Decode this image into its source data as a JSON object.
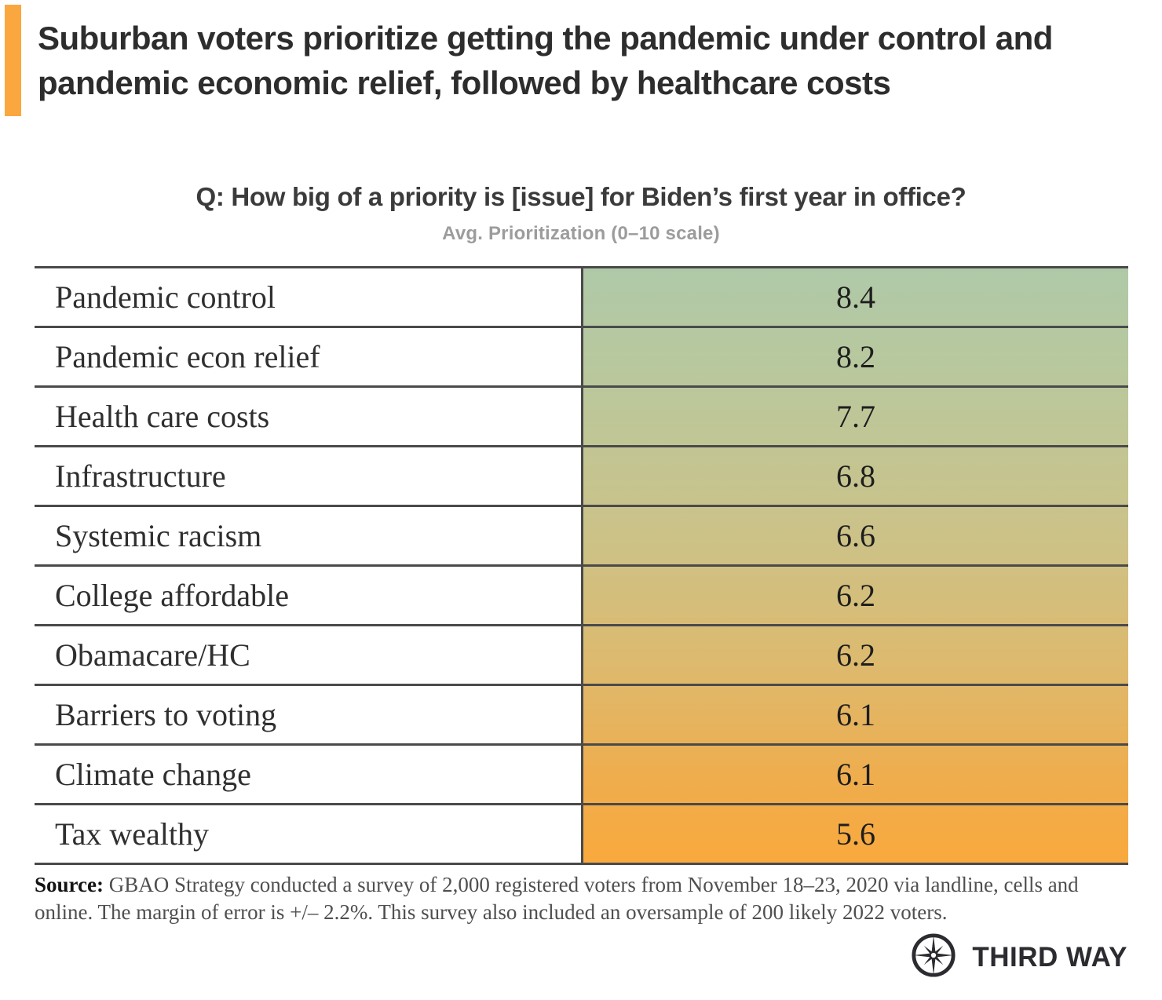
{
  "header": {
    "title": "Suburban voters prioritize getting the pandemic under control and pandemic economic relief, followed by healthcare costs",
    "accent_color": "#FAA73F"
  },
  "question": {
    "heading": "Q: How big of a priority is [issue] for Biden’s first year in office?",
    "subtitle": "Avg. Prioritization (0–10 scale)"
  },
  "chart_data": {
    "type": "table",
    "title": "Q: How big of a priority is [issue] for Biden’s first year in office?",
    "subtitle": "Avg. Prioritization (0–10 scale)",
    "value_scale": [
      0,
      10
    ],
    "categories": [
      "Pandemic control",
      "Pandemic econ relief",
      "Health care costs",
      "Infrastructure",
      "Systemic racism",
      "College affordable",
      "Obamacare/HC",
      "Barriers to voting",
      "Climate change",
      "Tax wealthy"
    ],
    "values": [
      8.4,
      8.2,
      7.7,
      6.8,
      6.6,
      6.2,
      6.2,
      6.1,
      6.1,
      5.6
    ],
    "layout": {
      "gradient_top_color": "#AFC9A8",
      "gradient_bottom_color": "#F9A93D",
      "border_color": "#4a4a4a"
    }
  },
  "source": {
    "label": "Source:",
    "text": " GBAO Strategy conducted a survey of 2,000 registered voters from November 18–23, 2020 via landline, cells and online. The margin of error is +/– 2.2%. This survey also included an oversample of 200 likely 2022 voters."
  },
  "footer": {
    "brand": "THIRD WAY"
  }
}
